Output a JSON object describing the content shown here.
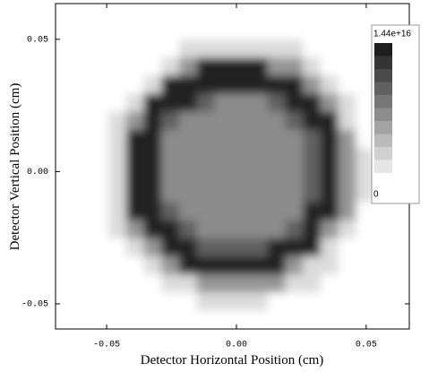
{
  "chart_data": {
    "type": "heatmap",
    "xlabel": "Detector Horizontal Position (cm)",
    "ylabel": "Detector Vertical Position (cm)",
    "xlim": [
      -0.0697,
      0.0666
    ],
    "ylim": [
      -0.0595,
      0.0635
    ],
    "xticks": [
      -0.05,
      {
        "value": 0,
        "label": "0.00"
      },
      0.05
    ],
    "yticks": [
      -0.05,
      {
        "value": 0,
        "label": "0.00"
      },
      0.05
    ],
    "zlim": [
      0,
      1.44e+16
    ],
    "zticks": [
      {
        "value": 1.44e+16,
        "label": "1.44e+16"
      },
      0
    ],
    "z": [
      [
        0,
        0,
        0,
        0,
        0,
        0,
        0,
        0,
        0,
        0,
        0,
        0,
        0,
        0,
        0,
        0,
        0,
        0,
        0,
        0
      ],
      [
        0,
        0,
        0,
        0,
        0,
        0,
        0,
        0,
        0,
        0,
        0,
        0,
        0,
        0,
        0,
        0,
        0,
        0,
        0,
        0
      ],
      [
        0,
        0,
        0,
        0,
        0,
        0,
        0,
        2000000000000000.0,
        2000000000000000.0,
        2000000000000000.0,
        2000000000000000.0,
        2000000000000000.0,
        2000000000000000.0,
        2000000000000000.0,
        0,
        0,
        0,
        0,
        0,
        0
      ],
      [
        0,
        0,
        0,
        0,
        0,
        0,
        2000000000000000.0,
        6000000000000000.0,
        1.25e+16,
        1.25e+16,
        1.25e+16,
        1.25e+16,
        6000000000000000.0,
        6000000000000000.0,
        2000000000000000.0,
        0,
        0,
        0,
        0,
        0
      ],
      [
        0,
        0,
        0,
        0,
        0,
        2000000000000000.0,
        1.25e+16,
        1.25e+16,
        1.25e+16,
        1.25e+16,
        1.25e+16,
        1.25e+16,
        1.25e+16,
        1.25e+16,
        6000000000000000.0,
        2000000000000000.0,
        0,
        0,
        0,
        0
      ],
      [
        0,
        0,
        0,
        0,
        2000000000000000.0,
        1.25e+16,
        1.25e+16,
        1.25e+16,
        9000000000000000.0,
        6500000000000000.0,
        6500000000000000.0,
        6500000000000000.0,
        9000000000000000.0,
        1.25e+16,
        1.25e+16,
        6000000000000000.0,
        2000000000000000.0,
        0,
        0,
        0
      ],
      [
        0,
        0,
        0,
        2000000000000000.0,
        6000000000000000.0,
        1.25e+16,
        9000000000000000.0,
        6500000000000000.0,
        6500000000000000.0,
        6500000000000000.0,
        6500000000000000.0,
        6500000000000000.0,
        6500000000000000.0,
        9000000000000000.0,
        1.25e+16,
        1.25e+16,
        2000000000000000.0,
        0,
        0,
        0
      ],
      [
        0,
        0,
        0,
        2000000000000000.0,
        1.25e+16,
        1.25e+16,
        6500000000000000.0,
        6500000000000000.0,
        6500000000000000.0,
        6500000000000000.0,
        6500000000000000.0,
        6500000000000000.0,
        6500000000000000.0,
        6500000000000000.0,
        9000000000000000.0,
        1.25e+16,
        6000000000000000.0,
        0,
        0,
        0
      ],
      [
        0,
        0,
        0,
        2000000000000000.0,
        1.25e+16,
        1.25e+16,
        6500000000000000.0,
        6500000000000000.0,
        6500000000000000.0,
        6500000000000000.0,
        6500000000000000.0,
        6500000000000000.0,
        6500000000000000.0,
        6500000000000000.0,
        9000000000000000.0,
        1.25e+16,
        6000000000000000.0,
        2000000000000000.0,
        0,
        0
      ],
      [
        0,
        0,
        0,
        2000000000000000.0,
        1.25e+16,
        1.25e+16,
        6500000000000000.0,
        6500000000000000.0,
        6500000000000000.0,
        6500000000000000.0,
        6500000000000000.0,
        6500000000000000.0,
        6500000000000000.0,
        6500000000000000.0,
        9000000000000000.0,
        1.25e+16,
        6000000000000000.0,
        2000000000000000.0,
        0,
        0
      ],
      [
        0,
        0,
        0,
        2000000000000000.0,
        1.25e+16,
        1.25e+16,
        6500000000000000.0,
        6500000000000000.0,
        6500000000000000.0,
        6500000000000000.0,
        6500000000000000.0,
        6500000000000000.0,
        6500000000000000.0,
        6500000000000000.0,
        9000000000000000.0,
        1.25e+16,
        6000000000000000.0,
        2000000000000000.0,
        0,
        0
      ],
      [
        0,
        0,
        0,
        2000000000000000.0,
        1.25e+16,
        1.25e+16,
        9000000000000000.0,
        6500000000000000.0,
        6500000000000000.0,
        6500000000000000.0,
        6500000000000000.0,
        6500000000000000.0,
        6500000000000000.0,
        6500000000000000.0,
        1.25e+16,
        1.25e+16,
        6000000000000000.0,
        0,
        0,
        0
      ],
      [
        0,
        0,
        0,
        2000000000000000.0,
        6000000000000000.0,
        1.25e+16,
        1.25e+16,
        9000000000000000.0,
        6500000000000000.0,
        6500000000000000.0,
        6500000000000000.0,
        6500000000000000.0,
        6500000000000000.0,
        9000000000000000.0,
        1.25e+16,
        6000000000000000.0,
        2000000000000000.0,
        0,
        0,
        0
      ],
      [
        0,
        0,
        0,
        0,
        2000000000000000.0,
        6000000000000000.0,
        1.25e+16,
        1.25e+16,
        9000000000000000.0,
        9000000000000000.0,
        9000000000000000.0,
        9000000000000000.0,
        1.25e+16,
        1.25e+16,
        1.25e+16,
        2000000000000000.0,
        0,
        0,
        0,
        0
      ],
      [
        0,
        0,
        0,
        0,
        0,
        2000000000000000.0,
        6000000000000000.0,
        1.25e+16,
        1.25e+16,
        1.25e+16,
        1.25e+16,
        1.25e+16,
        1.25e+16,
        6000000000000000.0,
        2000000000000000.0,
        2000000000000000.0,
        0,
        0,
        0,
        0
      ],
      [
        0,
        0,
        0,
        0,
        0,
        0,
        2000000000000000.0,
        2000000000000000.0,
        6000000000000000.0,
        6000000000000000.0,
        6000000000000000.0,
        6000000000000000.0,
        6000000000000000.0,
        2000000000000000.0,
        2000000000000000.0,
        0,
        0,
        0,
        0,
        0
      ],
      [
        0,
        0,
        0,
        0,
        0,
        0,
        0,
        0,
        2000000000000000.0,
        2000000000000000.0,
        2000000000000000.0,
        2000000000000000.0,
        0,
        0,
        0,
        0,
        0,
        0,
        0,
        0
      ],
      [
        0,
        0,
        0,
        0,
        0,
        0,
        0,
        0,
        0,
        0,
        0,
        0,
        0,
        0,
        0,
        0,
        0,
        0,
        0,
        0
      ]
    ]
  }
}
